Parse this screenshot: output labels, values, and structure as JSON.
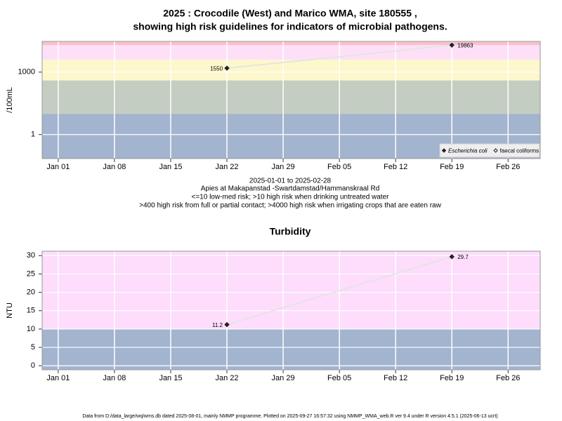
{
  "title": [
    "2025 : Crocodile (West) and Marico WMA, site 180555 ,",
    "showing high risk guidelines for indicators of microbial pathogens."
  ],
  "notes": [
    "2025-01-01 to 2025-02-28",
    "Apies at Makapanstad -Swartdamstad/Hammanskraal Rd",
    "<=10 low-med risk; >10 high risk when drinking untreated water",
    ">400 high risk from full or partial contact; >4000 high risk when irrigating crops that are eaten raw"
  ],
  "footer": "Data from D:/data_large/wq/wms.db dated 2025-08-01, mainly NMMP programme. Plotted on 2025-09-27 16:57:32 using NMMP_WMA_web.R ver 9.4 under R version 4.5.1 (2025-06-13 ucrt)",
  "chart_data": [
    {
      "type": "line",
      "ylabel": "/100mL",
      "log_scale": true,
      "grid": true,
      "legend": "lower right",
      "line_color": "#e4e4e4",
      "x": [
        "2025-01-22",
        "2025-02-19"
      ],
      "series": [
        {
          "name": "Escherichia coli",
          "color": "#222222",
          "marker_filled": true,
          "values": [
            1550,
            19863
          ]
        },
        {
          "name": "faecal coliforms",
          "color": "#222222",
          "marker_filled": false,
          "values": [
            null,
            null
          ]
        }
      ],
      "xlim": [
        "2024-12-30",
        "2025-03-02"
      ],
      "xticks": [
        {
          "value": "2025-01-01",
          "label": "Jan 01"
        },
        {
          "value": "2025-01-08",
          "label": "Jan 08"
        },
        {
          "value": "2025-01-15",
          "label": "Jan 15"
        },
        {
          "value": "2025-01-22",
          "label": "Jan 22"
        },
        {
          "value": "2025-01-29",
          "label": "Jan 29"
        },
        {
          "value": "2025-02-05",
          "label": "Feb 05"
        },
        {
          "value": "2025-02-12",
          "label": "Feb 12"
        },
        {
          "value": "2025-02-19",
          "label": "Feb 19"
        },
        {
          "value": "2025-02-26",
          "label": "Feb 26"
        }
      ],
      "ylim": [
        0.07,
        30000
      ],
      "yticks": [
        1,
        1000
      ],
      "bands": [
        {
          "from": 0.07,
          "to": 10,
          "color": "#a3b4cf"
        },
        {
          "from": 10,
          "to": 400,
          "color": "#c4cdc2"
        },
        {
          "from": 400,
          "to": 4000,
          "color": "#fdf7cc"
        },
        {
          "from": 4000,
          "to": 20000,
          "color": "#fde0f8"
        },
        {
          "from": 20000,
          "to": 30000,
          "color": "#f8c0cc"
        }
      ]
    },
    {
      "type": "line",
      "title": "Turbidity",
      "ylabel": "NTU",
      "log_scale": false,
      "grid": true,
      "line_color": "#e4e4e4",
      "x": [
        "2025-01-22",
        "2025-02-19"
      ],
      "series": [
        {
          "name": "Turbidity",
          "color": "#222222",
          "marker_filled": true,
          "values": [
            11.2,
            29.7
          ]
        }
      ],
      "xlim": [
        "2024-12-30",
        "2025-03-02"
      ],
      "xticks": [
        {
          "value": "2025-01-01",
          "label": "Jan 01"
        },
        {
          "value": "2025-01-08",
          "label": "Jan 08"
        },
        {
          "value": "2025-01-15",
          "label": "Jan 15"
        },
        {
          "value": "2025-01-22",
          "label": "Jan 22"
        },
        {
          "value": "2025-01-29",
          "label": "Jan 29"
        },
        {
          "value": "2025-02-05",
          "label": "Feb 05"
        },
        {
          "value": "2025-02-12",
          "label": "Feb 12"
        },
        {
          "value": "2025-02-19",
          "label": "Feb 19"
        },
        {
          "value": "2025-02-26",
          "label": "Feb 26"
        }
      ],
      "ylim": [
        -1.1,
        31.2
      ],
      "yticks": [
        0,
        5,
        10,
        15,
        20,
        25,
        30
      ],
      "bands": [
        {
          "from": -1.1,
          "to": 10,
          "color": "#a3b4cf"
        },
        {
          "from": 10,
          "to": 31.2,
          "color": "#fddcfc"
        }
      ]
    }
  ]
}
